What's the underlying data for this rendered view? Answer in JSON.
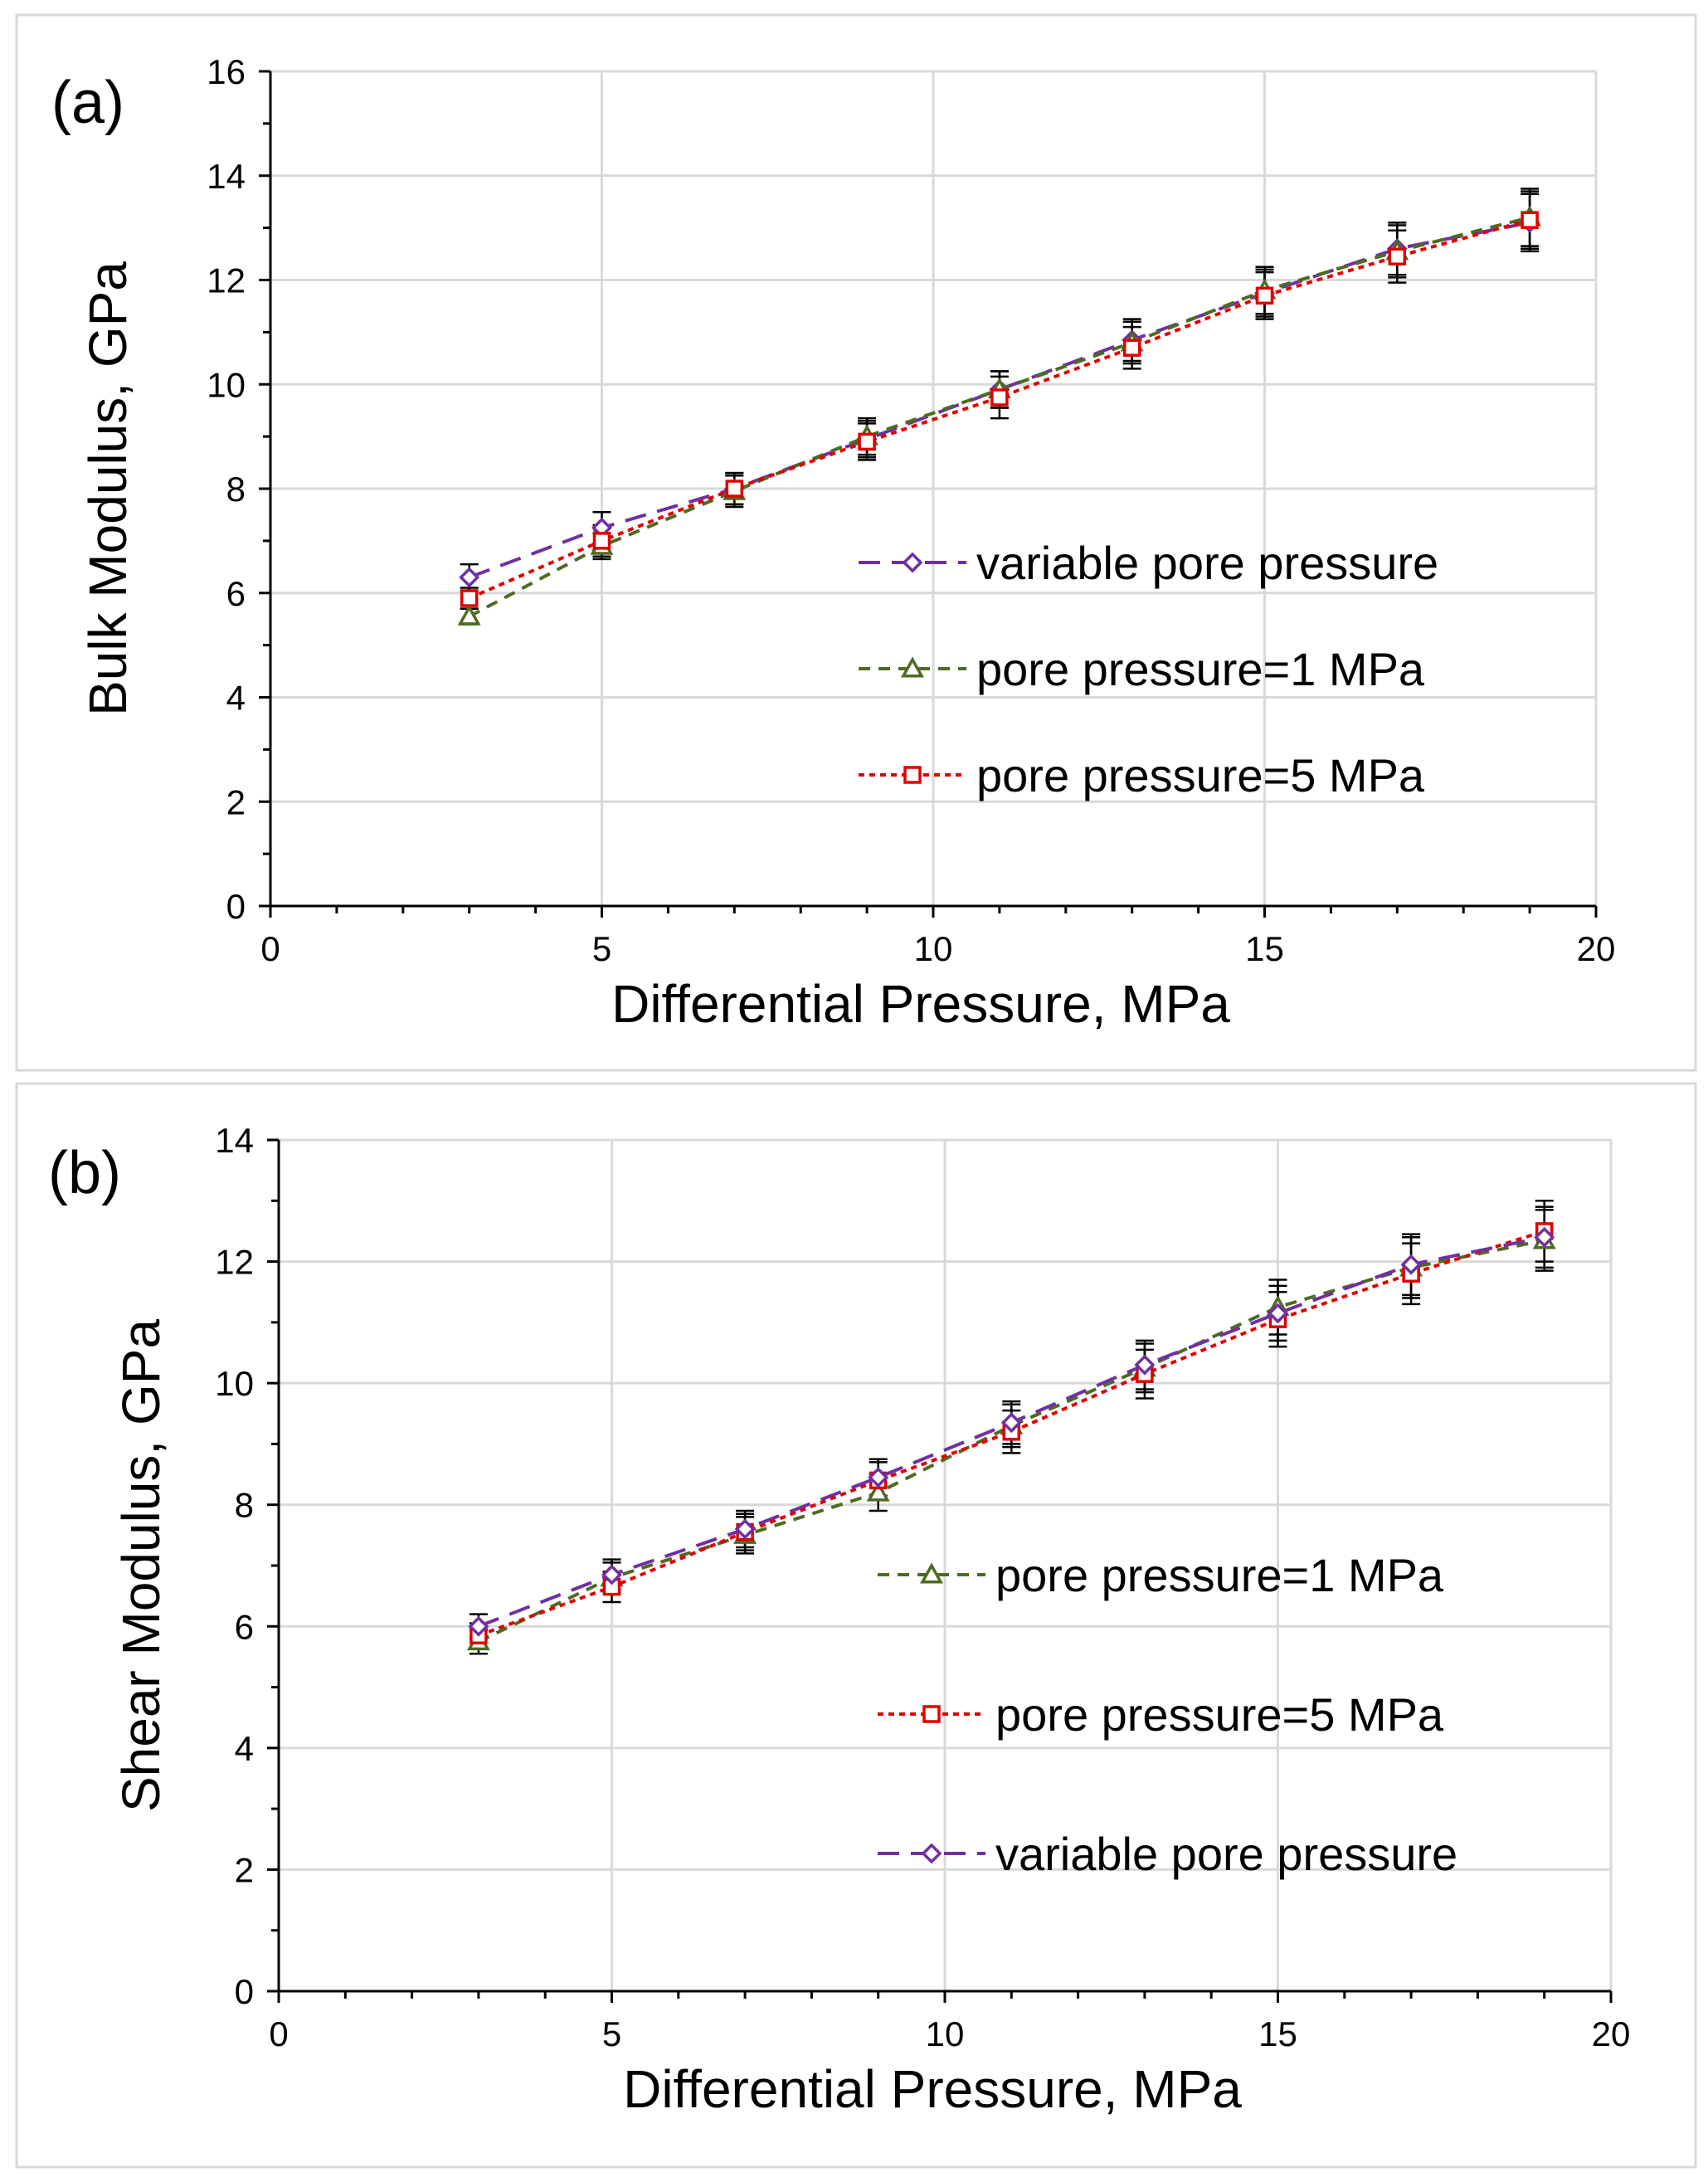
{
  "chart_data": [
    {
      "type": "line",
      "panel_label": "(a)",
      "xlabel": "Differential Pressure, MPa",
      "ylabel": "Bulk Modulus, GPa",
      "xlim": [
        0,
        20
      ],
      "ylim": [
        0,
        16
      ],
      "xticks": [
        0,
        5,
        10,
        15,
        20
      ],
      "yticks": [
        0,
        2,
        4,
        6,
        8,
        10,
        12,
        14,
        16
      ],
      "grid": true,
      "legend_position": "center-right",
      "x": [
        3,
        5,
        7,
        9,
        11,
        13,
        15,
        17,
        19
      ],
      "series": [
        {
          "name": "variable pore pressure",
          "color": "#7030a0",
          "marker": "diamond",
          "dash": "long-dash",
          "values": [
            6.3,
            7.25,
            8.0,
            8.95,
            9.9,
            10.85,
            11.75,
            12.6,
            13.1
          ],
          "errors": [
            0.25,
            0.3,
            0.3,
            0.35,
            0.35,
            0.4,
            0.45,
            0.5,
            0.55
          ]
        },
        {
          "name": "pore pressure=1 MPa",
          "color": "#4e6b22",
          "marker": "triangle",
          "dash": "dash",
          "values": [
            5.55,
            6.9,
            7.95,
            9.0,
            9.9,
            10.8,
            11.8,
            12.55,
            13.2
          ],
          "errors": [
            0.15,
            0.25,
            0.3,
            0.35,
            0.35,
            0.4,
            0.45,
            0.5,
            0.55
          ]
        },
        {
          "name": "pore pressure=5 MPa",
          "color": "#e00000",
          "marker": "square",
          "dash": "dot",
          "values": [
            5.9,
            7.0,
            8.0,
            8.9,
            9.75,
            10.7,
            11.7,
            12.45,
            13.15
          ],
          "errors": [
            0.2,
            0.3,
            0.3,
            0.35,
            0.4,
            0.4,
            0.45,
            0.5,
            0.55
          ]
        }
      ]
    },
    {
      "type": "line",
      "panel_label": "(b)",
      "xlabel": "Differential Pressure, MPa",
      "ylabel": "Shear Modulus, GPa",
      "xlim": [
        0,
        20
      ],
      "ylim": [
        0,
        14
      ],
      "xticks": [
        0,
        5,
        10,
        15,
        20
      ],
      "yticks": [
        0,
        2,
        4,
        6,
        8,
        10,
        12,
        14
      ],
      "grid": true,
      "legend_position": "center-right",
      "x": [
        3,
        5,
        7,
        9,
        11,
        13,
        15,
        17,
        19
      ],
      "series": [
        {
          "name": "pore pressure=1 MPa",
          "color": "#4e6b22",
          "marker": "triangle",
          "dash": "dash",
          "values": [
            5.75,
            6.8,
            7.5,
            8.2,
            9.3,
            10.25,
            11.25,
            11.9,
            12.35
          ],
          "errors": [
            0.2,
            0.25,
            0.3,
            0.3,
            0.35,
            0.4,
            0.45,
            0.5,
            0.5
          ]
        },
        {
          "name": "pore pressure=5 MPa",
          "color": "#e00000",
          "marker": "square",
          "dash": "dot",
          "values": [
            5.85,
            6.65,
            7.55,
            8.4,
            9.2,
            10.15,
            11.05,
            11.8,
            12.5
          ],
          "errors": [
            0.2,
            0.25,
            0.3,
            0.3,
            0.35,
            0.4,
            0.45,
            0.5,
            0.5
          ]
        },
        {
          "name": "variable pore pressure",
          "color": "#7030a0",
          "marker": "diamond",
          "dash": "long-dash",
          "values": [
            6.0,
            6.85,
            7.6,
            8.45,
            9.35,
            10.3,
            11.15,
            11.95,
            12.4
          ],
          "errors": [
            0.2,
            0.25,
            0.3,
            0.3,
            0.35,
            0.4,
            0.45,
            0.5,
            0.5
          ]
        }
      ]
    }
  ]
}
